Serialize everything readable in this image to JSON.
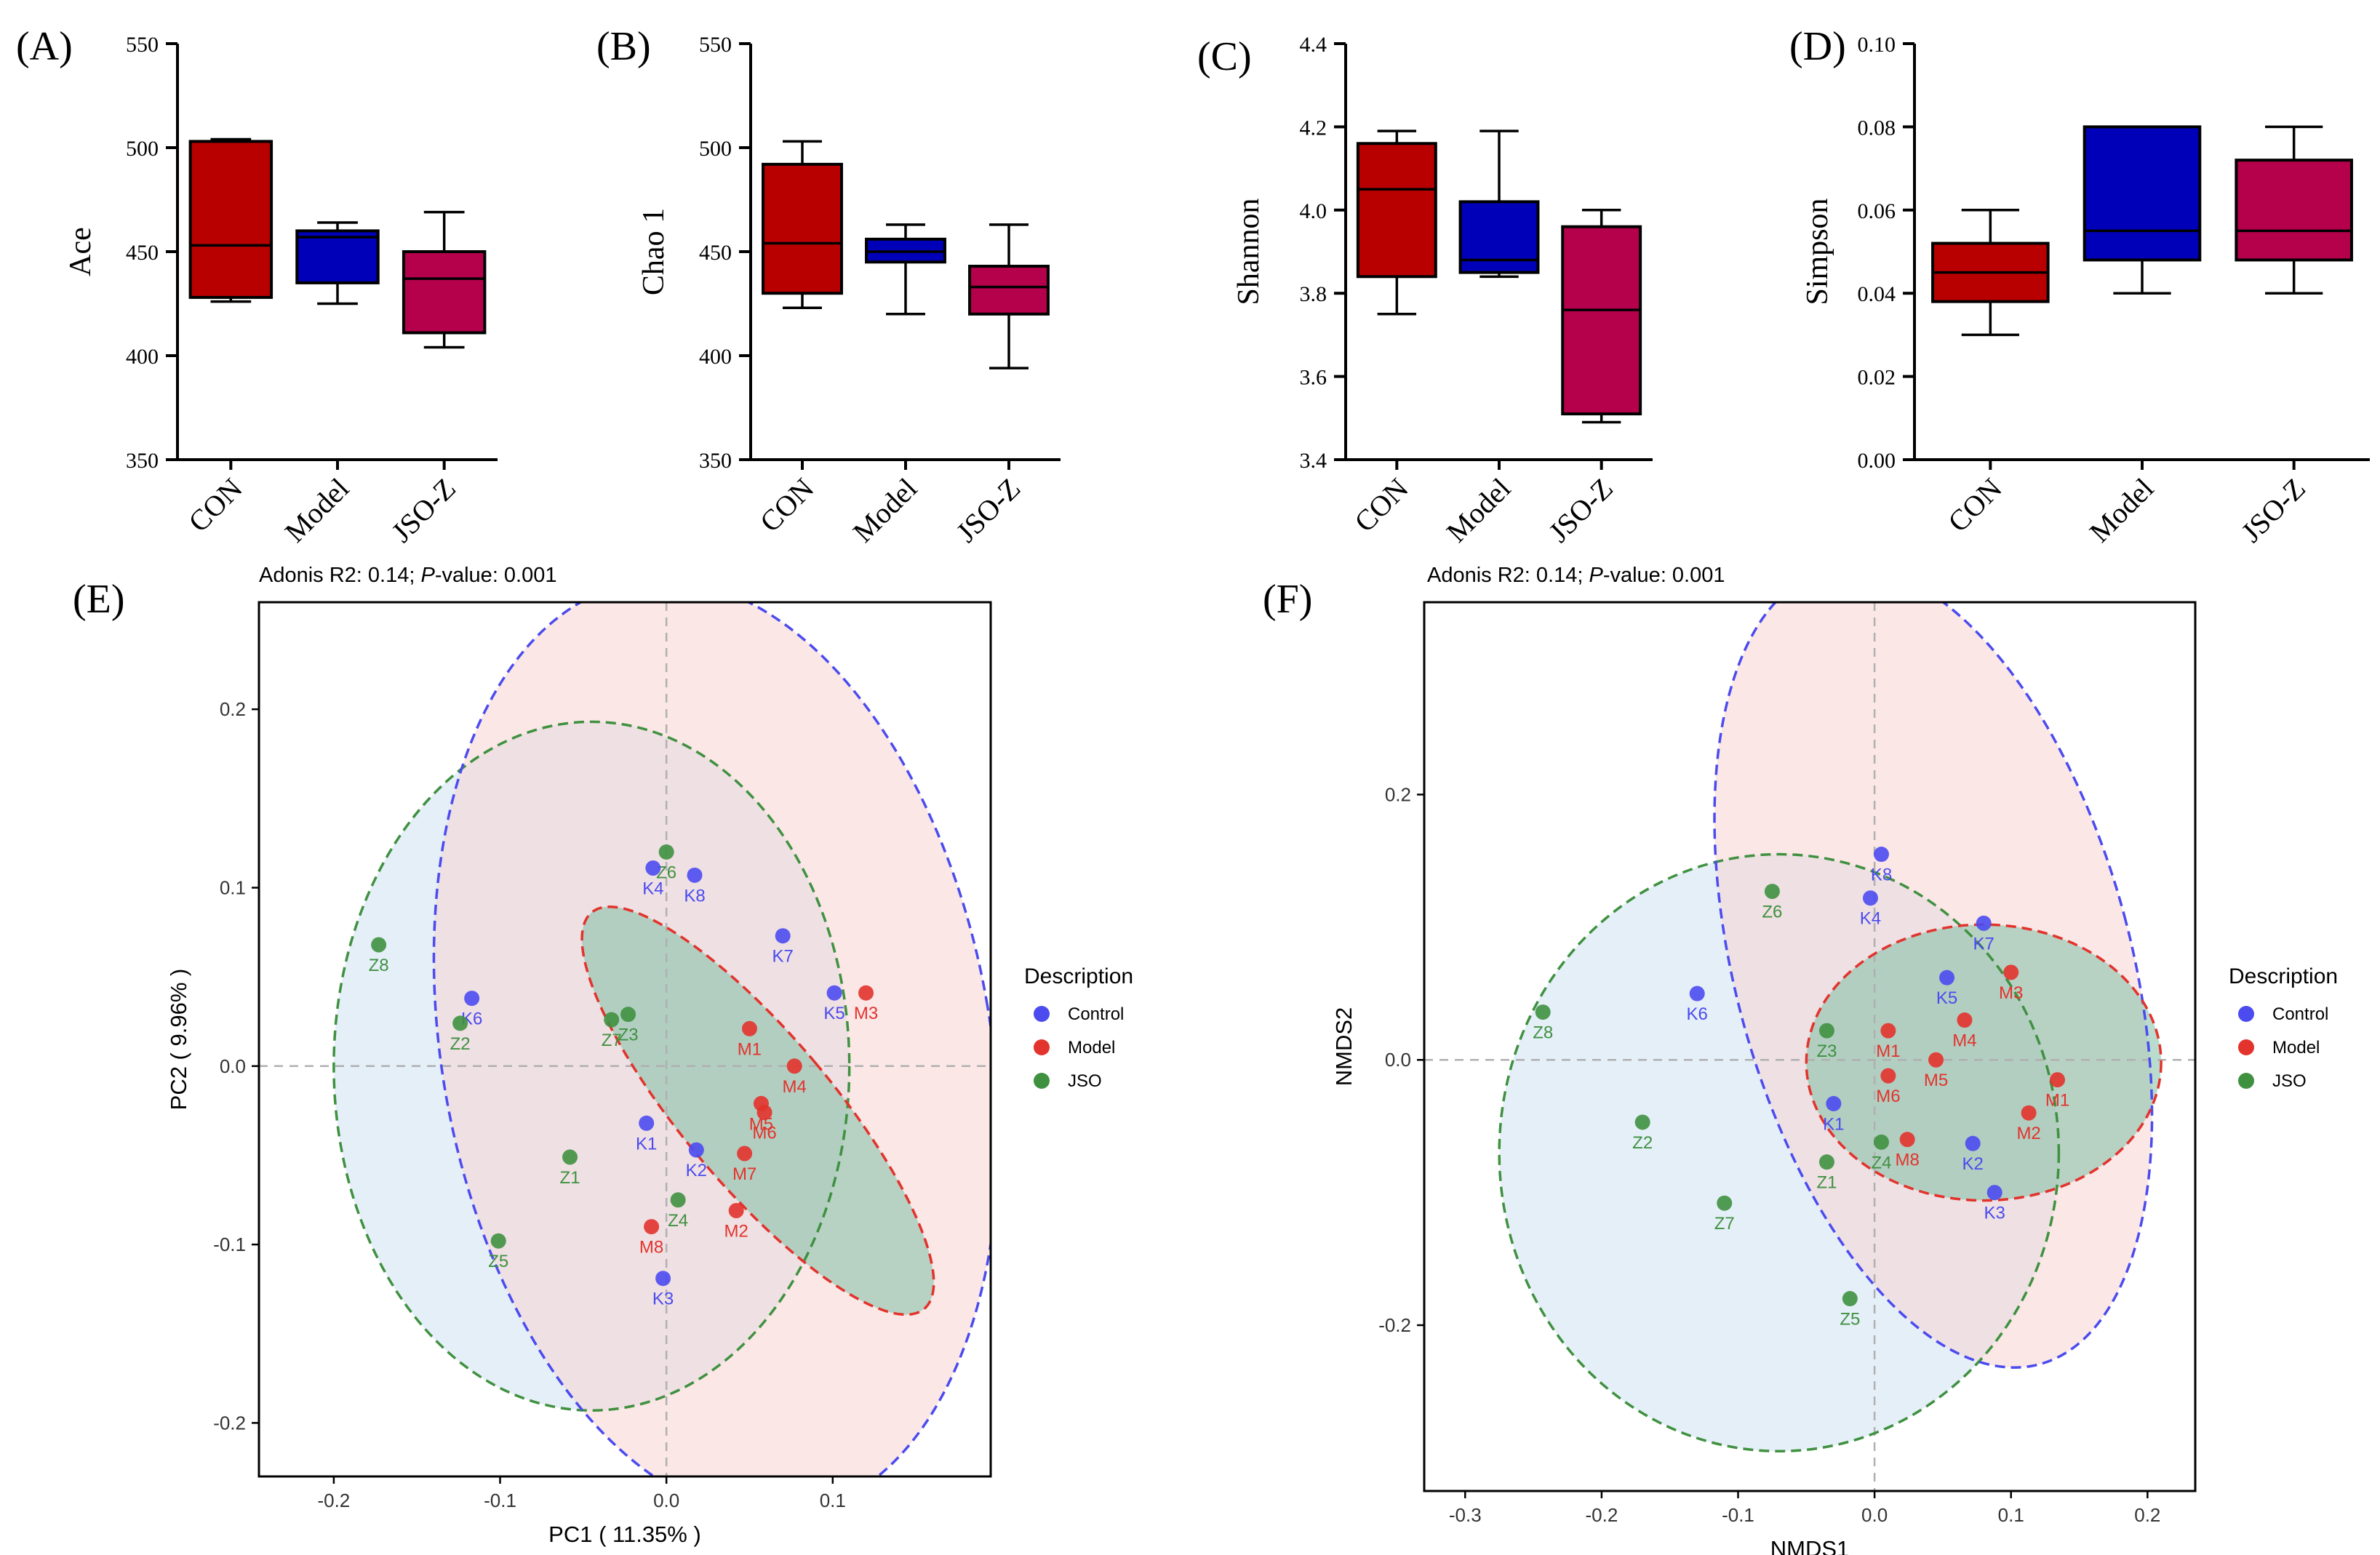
{
  "figure": "Alpha and beta diversity analysis",
  "chart_data": [
    {
      "id": "A",
      "panel_label": "(A)",
      "type": "box",
      "ylabel": "Ace",
      "ylim": [
        350,
        550
      ],
      "yticks": [
        350,
        400,
        450,
        500,
        550
      ],
      "categories": [
        "CON",
        "Model",
        "JSO-Z"
      ],
      "colors": [
        "#b80000",
        "#0000b8",
        "#b5004b"
      ],
      "boxes": [
        {
          "min": 426,
          "q1": 428,
          "median": 453,
          "q3": 503,
          "max": 504
        },
        {
          "min": 425,
          "q1": 435,
          "median": 457,
          "q3": 460,
          "max": 464
        },
        {
          "min": 404,
          "q1": 411,
          "median": 437,
          "q3": 450,
          "max": 469
        }
      ]
    },
    {
      "id": "B",
      "panel_label": "(B)",
      "type": "box",
      "ylabel": "Chao 1",
      "ylim": [
        350,
        550
      ],
      "yticks": [
        350,
        400,
        450,
        500,
        550
      ],
      "categories": [
        "CON",
        "Model",
        "JSO-Z"
      ],
      "colors": [
        "#b80000",
        "#0000b8",
        "#b5004b"
      ],
      "boxes": [
        {
          "min": 423,
          "q1": 430,
          "median": 454,
          "q3": 492,
          "max": 503
        },
        {
          "min": 420,
          "q1": 445,
          "median": 450,
          "q3": 456,
          "max": 463
        },
        {
          "min": 394,
          "q1": 420,
          "median": 433,
          "q3": 443,
          "max": 463
        }
      ]
    },
    {
      "id": "C",
      "panel_label": "(C)",
      "type": "box",
      "ylabel": "Shannon",
      "ylim": [
        3.4,
        4.4
      ],
      "yticks": [
        3.4,
        3.6,
        3.8,
        4.0,
        4.2,
        4.4
      ],
      "categories": [
        "CON",
        "Model",
        "JSO-Z"
      ],
      "colors": [
        "#b80000",
        "#0000b8",
        "#b5004b"
      ],
      "boxes": [
        {
          "min": 3.75,
          "q1": 3.84,
          "median": 4.05,
          "q3": 4.16,
          "max": 4.19
        },
        {
          "min": 3.84,
          "q1": 3.85,
          "median": 3.88,
          "q3": 4.02,
          "max": 4.19
        },
        {
          "min": 3.49,
          "q1": 3.51,
          "median": 3.76,
          "q3": 3.96,
          "max": 4.0
        }
      ]
    },
    {
      "id": "D",
      "panel_label": "(D)",
      "type": "box",
      "ylabel": "Simpson",
      "ylim": [
        0.0,
        0.1
      ],
      "yticks": [
        0.0,
        0.02,
        0.04,
        0.06,
        0.08,
        0.1
      ],
      "categories": [
        "CON",
        "Model",
        "JSO-Z"
      ],
      "colors": [
        "#b80000",
        "#0000b8",
        "#b5004b"
      ],
      "boxes": [
        {
          "min": 0.03,
          "q1": 0.038,
          "median": 0.045,
          "q3": 0.052,
          "max": 0.06
        },
        {
          "min": 0.04,
          "q1": 0.048,
          "median": 0.055,
          "q3": 0.08,
          "max": 0.08
        },
        {
          "min": 0.04,
          "q1": 0.048,
          "median": 0.055,
          "q3": 0.072,
          "max": 0.08
        }
      ]
    },
    {
      "id": "E",
      "panel_label": "(E)",
      "type": "scatter",
      "title_prefix": "Adonis R2: 0.14; ",
      "title_p": "P",
      "title_suffix": "-value: 0.001",
      "xlabel": "PC1 ( 11.35% )",
      "ylabel": "PC2 ( 9.96% )",
      "xlim": [
        -0.245,
        0.195
      ],
      "ylim": [
        -0.23,
        0.26
      ],
      "xticks": [
        -0.2,
        -0.1,
        0.0,
        0.1
      ],
      "yticks": [
        -0.2,
        -0.1,
        0.0,
        0.1,
        0.2
      ],
      "legend": {
        "title": "Description",
        "items": [
          {
            "label": "Control",
            "color": "#4b4bef"
          },
          {
            "label": "Model",
            "color": "#e2332c"
          },
          {
            "label": "JSO",
            "color": "#3f9140"
          }
        ]
      },
      "ellipses": [
        {
          "group": "JSO",
          "cx": -0.045,
          "cy": 0.0,
          "rx": 0.155,
          "ry": 0.193,
          "angle": 0,
          "fill": "#cfe2f3",
          "stroke": "#3f9140"
        },
        {
          "group": "Control",
          "cx": 0.03,
          "cy": 0.01,
          "rx": 0.165,
          "ry": 0.265,
          "angle": 10,
          "fill": "#f8d3d1",
          "stroke": "#4b4bef"
        },
        {
          "group": "Model",
          "cx": 0.055,
          "cy": -0.025,
          "rx": 0.045,
          "ry": 0.145,
          "angle": 40,
          "fill": "#7fbfa5",
          "stroke": "#e2332c"
        }
      ],
      "points": [
        {
          "label": "Z8",
          "x": -0.173,
          "y": 0.068,
          "group": "JSO"
        },
        {
          "label": "K6",
          "x": -0.117,
          "y": 0.038,
          "group": "Control"
        },
        {
          "label": "Z2",
          "x": -0.124,
          "y": 0.024,
          "group": "JSO"
        },
        {
          "label": "Z7",
          "x": -0.033,
          "y": 0.026,
          "group": "JSO"
        },
        {
          "label": "Z3",
          "x": -0.023,
          "y": 0.029,
          "group": "JSO"
        },
        {
          "label": "Z6",
          "x": 0.0,
          "y": 0.12,
          "group": "JSO"
        },
        {
          "label": "K4",
          "x": -0.008,
          "y": 0.111,
          "group": "Control"
        },
        {
          "label": "K8",
          "x": 0.017,
          "y": 0.107,
          "group": "Control"
        },
        {
          "label": "K7",
          "x": 0.07,
          "y": 0.073,
          "group": "Control"
        },
        {
          "label": "K5",
          "x": 0.101,
          "y": 0.041,
          "group": "Control"
        },
        {
          "label": "M3",
          "x": 0.12,
          "y": 0.041,
          "group": "Model"
        },
        {
          "label": "M1",
          "x": 0.05,
          "y": 0.021,
          "group": "Model"
        },
        {
          "label": "M4",
          "x": 0.077,
          "y": 0.0,
          "group": "Model"
        },
        {
          "label": "M5",
          "x": 0.057,
          "y": -0.021,
          "group": "Model"
        },
        {
          "label": "M6",
          "x": 0.059,
          "y": -0.026,
          "group": "Model"
        },
        {
          "label": "K1",
          "x": -0.012,
          "y": -0.032,
          "group": "Control"
        },
        {
          "label": "K2",
          "x": 0.018,
          "y": -0.047,
          "group": "Control"
        },
        {
          "label": "M7",
          "x": 0.047,
          "y": -0.049,
          "group": "Model"
        },
        {
          "label": "Z1",
          "x": -0.058,
          "y": -0.051,
          "group": "JSO"
        },
        {
          "label": "Z4",
          "x": 0.007,
          "y": -0.075,
          "group": "JSO"
        },
        {
          "label": "M2",
          "x": 0.042,
          "y": -0.081,
          "group": "Model"
        },
        {
          "label": "M8",
          "x": -0.009,
          "y": -0.09,
          "group": "Model"
        },
        {
          "label": "Z5",
          "x": -0.101,
          "y": -0.098,
          "group": "JSO"
        },
        {
          "label": "K3",
          "x": -0.002,
          "y": -0.119,
          "group": "Control"
        }
      ]
    },
    {
      "id": "F",
      "panel_label": "(F)",
      "type": "scatter",
      "title_prefix": "Adonis R2: 0.14; ",
      "title_p": "P",
      "title_suffix": "-value: 0.001",
      "xlabel": "NMDS1",
      "ylabel": "NMDS2",
      "xlim": [
        -0.33,
        0.235
      ],
      "ylim": [
        -0.325,
        0.345
      ],
      "xticks": [
        -0.3,
        -0.2,
        -0.1,
        0.0,
        0.1,
        0.2
      ],
      "yticks": [
        -0.2,
        0.0,
        0.2
      ],
      "legend": {
        "title": "Description",
        "items": [
          {
            "label": "Control",
            "color": "#4b4bef"
          },
          {
            "label": "Model",
            "color": "#e2332c"
          },
          {
            "label": "JSO",
            "color": "#3f9140"
          }
        ]
      },
      "ellipses": [
        {
          "group": "JSO",
          "cx": -0.07,
          "cy": -0.07,
          "rx": 0.205,
          "ry": 0.225,
          "angle": 0,
          "fill": "#cfe2f3",
          "stroke": "#3f9140"
        },
        {
          "group": "Control",
          "cx": 0.043,
          "cy": 0.07,
          "rx": 0.145,
          "ry": 0.31,
          "angle": 15,
          "fill": "#f8d3d1",
          "stroke": "#4b4bef"
        },
        {
          "group": "Model",
          "cx": 0.08,
          "cy": -0.002,
          "rx": 0.13,
          "ry": 0.104,
          "angle": 0,
          "fill": "#7fbfa5",
          "stroke": "#e2332c"
        }
      ],
      "points": [
        {
          "label": "K8",
          "x": 0.005,
          "y": 0.155,
          "group": "Control"
        },
        {
          "label": "K4",
          "x": -0.003,
          "y": 0.122,
          "group": "Control"
        },
        {
          "label": "Z6",
          "x": -0.075,
          "y": 0.127,
          "group": "JSO"
        },
        {
          "label": "K7",
          "x": 0.08,
          "y": 0.103,
          "group": "Control"
        },
        {
          "label": "M3",
          "x": 0.1,
          "y": 0.066,
          "group": "Model"
        },
        {
          "label": "K5",
          "x": 0.053,
          "y": 0.062,
          "group": "Control"
        },
        {
          "label": "K6",
          "x": -0.13,
          "y": 0.05,
          "group": "Control"
        },
        {
          "label": "Z8",
          "x": -0.243,
          "y": 0.036,
          "group": "JSO"
        },
        {
          "label": "Z3",
          "x": -0.035,
          "y": 0.022,
          "group": "JSO"
        },
        {
          "label": "M1",
          "x": 0.01,
          "y": 0.022,
          "group": "Model"
        },
        {
          "label": "M4",
          "x": 0.066,
          "y": 0.03,
          "group": "Model"
        },
        {
          "label": "M5",
          "x": 0.045,
          "y": 0.0,
          "group": "Model"
        },
        {
          "label": "M6",
          "x": 0.01,
          "y": -0.012,
          "group": "Model"
        },
        {
          "label": "M1",
          "x": 0.134,
          "y": -0.015,
          "group": "Model"
        },
        {
          "label": "K1",
          "x": -0.03,
          "y": -0.033,
          "group": "Control"
        },
        {
          "label": "M2",
          "x": 0.113,
          "y": -0.04,
          "group": "Model"
        },
        {
          "label": "Z2",
          "x": -0.17,
          "y": -0.047,
          "group": "JSO"
        },
        {
          "label": "Z4",
          "x": 0.005,
          "y": -0.062,
          "group": "JSO"
        },
        {
          "label": "M8",
          "x": 0.024,
          "y": -0.06,
          "group": "Model"
        },
        {
          "label": "K2",
          "x": 0.072,
          "y": -0.063,
          "group": "Control"
        },
        {
          "label": "Z1",
          "x": -0.035,
          "y": -0.077,
          "group": "JSO"
        },
        {
          "label": "K3",
          "x": 0.088,
          "y": -0.1,
          "group": "Control"
        },
        {
          "label": "Z7",
          "x": -0.11,
          "y": -0.108,
          "group": "JSO"
        },
        {
          "label": "Z5",
          "x": -0.018,
          "y": -0.18,
          "group": "JSO"
        }
      ]
    }
  ]
}
